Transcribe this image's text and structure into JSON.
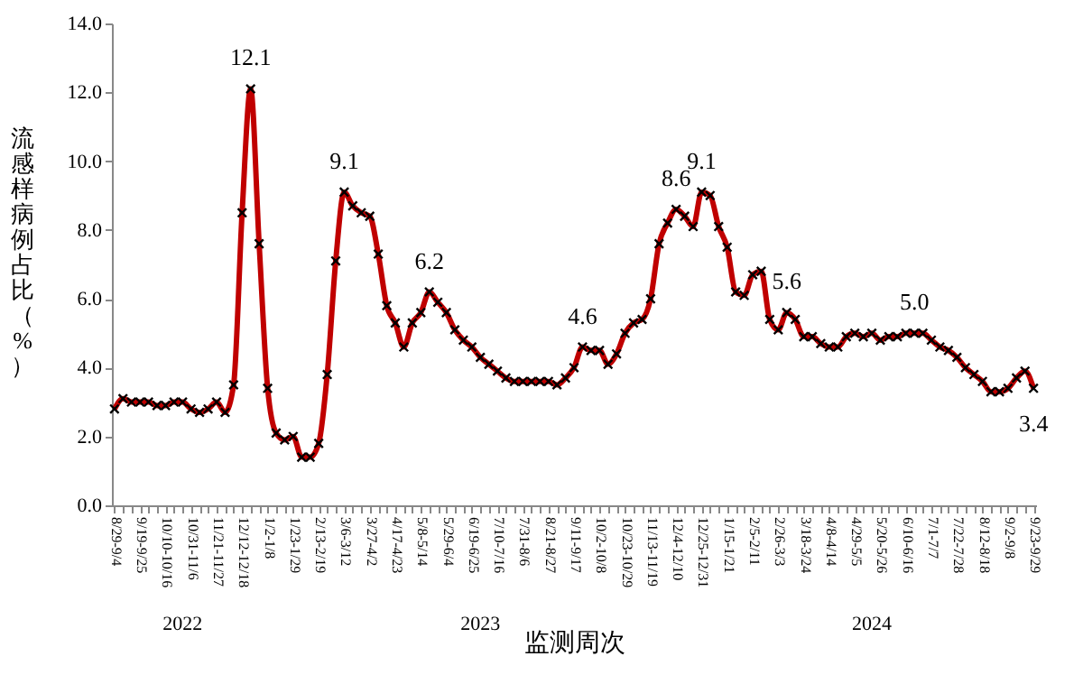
{
  "chart_data": {
    "type": "line",
    "ylabel": "流感样病例占比（%）",
    "xlabel": "监测周次",
    "categories": [
      "8/29-9/4",
      null,
      null,
      "9/19-9/25",
      null,
      null,
      "10/10-10/16",
      null,
      null,
      "10/31-11/6",
      null,
      null,
      "11/21-11/27",
      null,
      null,
      "12/12-12/18",
      null,
      null,
      "1/2-1/8",
      null,
      null,
      "1/23-1/29",
      null,
      null,
      "2/13-2/19",
      null,
      null,
      "3/6-3/12",
      null,
      null,
      "3/27-4/2",
      null,
      null,
      "4/17-4/23",
      null,
      null,
      "5/8-5/14",
      null,
      null,
      "5/29-6/4",
      null,
      null,
      "6/19-6/25",
      null,
      null,
      "7/10-7/16",
      null,
      null,
      "7/31-8/6",
      null,
      null,
      "8/21-8/27",
      null,
      null,
      "9/11-9/17",
      null,
      null,
      "10/2-10/8",
      null,
      null,
      "10/23-10/29",
      null,
      null,
      "11/13-11/19",
      null,
      null,
      "12/4-12/10",
      null,
      null,
      "12/25-12/31",
      null,
      null,
      "1/15-1/21",
      null,
      null,
      "2/5-2/11",
      null,
      null,
      "2/26-3/3",
      null,
      null,
      "3/18-3/24",
      null,
      null,
      "4/8-4/14",
      null,
      null,
      "4/29-5/5",
      null,
      null,
      "5/20-5/26",
      null,
      null,
      "6/10-6/16",
      null,
      null,
      "7/1-7/7",
      null,
      null,
      "7/22-7/28",
      null,
      null,
      "8/12-8/18",
      null,
      null,
      "9/2-9/8",
      null,
      null,
      "9/23-9/29"
    ],
    "series": [
      {
        "color": "#c00000",
        "values": [
          2.8,
          3.1,
          3.0,
          3.0,
          3.0,
          2.9,
          2.9,
          3.0,
          3.0,
          2.8,
          2.7,
          2.8,
          3.0,
          2.7,
          3.5,
          8.5,
          12.1,
          7.6,
          3.4,
          2.1,
          1.9,
          2.0,
          1.4,
          1.4,
          1.8,
          3.8,
          7.1,
          9.1,
          8.7,
          8.5,
          8.4,
          7.3,
          5.8,
          5.3,
          4.6,
          5.3,
          5.6,
          6.2,
          5.9,
          5.6,
          5.1,
          4.8,
          4.6,
          4.3,
          4.1,
          3.9,
          3.7,
          3.6,
          3.6,
          3.6,
          3.6,
          3.6,
          3.5,
          3.7,
          4.0,
          4.6,
          4.5,
          4.5,
          4.1,
          4.4,
          5.0,
          5.3,
          5.4,
          6.0,
          7.6,
          8.2,
          8.6,
          8.4,
          8.1,
          9.1,
          9.0,
          8.1,
          7.5,
          6.2,
          6.1,
          6.7,
          6.8,
          5.4,
          5.1,
          5.6,
          5.4,
          4.9,
          4.9,
          4.7,
          4.6,
          4.6,
          4.9,
          5.0,
          4.9,
          5.0,
          4.8,
          4.9,
          4.9,
          5.0,
          5.0,
          5.0,
          4.8,
          4.6,
          4.5,
          4.3,
          4.0,
          3.8,
          3.6,
          3.3,
          3.3,
          3.4,
          3.7,
          3.9,
          3.4
        ],
        "value_labels": [
          null,
          null,
          null,
          null,
          null,
          null,
          null,
          null,
          null,
          null,
          null,
          null,
          null,
          null,
          null,
          null,
          "12.1",
          null,
          null,
          null,
          null,
          null,
          null,
          null,
          null,
          null,
          null,
          "9.1",
          null,
          null,
          null,
          null,
          null,
          null,
          null,
          null,
          null,
          "6.2",
          null,
          null,
          null,
          null,
          null,
          null,
          null,
          null,
          null,
          null,
          null,
          null,
          null,
          null,
          null,
          null,
          null,
          "4.6",
          null,
          null,
          null,
          null,
          null,
          null,
          null,
          null,
          null,
          null,
          "8.6",
          null,
          null,
          "9.1",
          null,
          null,
          null,
          null,
          null,
          null,
          null,
          null,
          null,
          "5.6",
          null,
          null,
          null,
          null,
          null,
          null,
          null,
          null,
          null,
          null,
          null,
          null,
          null,
          null,
          "5.0",
          null,
          null,
          null,
          null,
          null,
          null,
          null,
          null,
          null,
          null,
          null,
          null,
          null,
          "3.4"
        ]
      }
    ],
    "annotations": [
      "2022",
      "2023",
      "2024"
    ],
    "ylim": [
      0,
      14
    ],
    "yticks": [
      {
        "value": 0,
        "label": "0.0"
      },
      {
        "value": 2,
        "label": "2.0"
      },
      {
        "value": 4,
        "label": "4.0"
      },
      {
        "value": 6,
        "label": "6.0"
      },
      {
        "value": 8,
        "label": "8.0"
      },
      {
        "value": 10,
        "label": "10.0"
      },
      {
        "value": 12,
        "label": "12.0"
      },
      {
        "value": 14,
        "label": "14.0"
      }
    ],
    "grid": false,
    "marker": "cross",
    "line_style": "solid"
  }
}
